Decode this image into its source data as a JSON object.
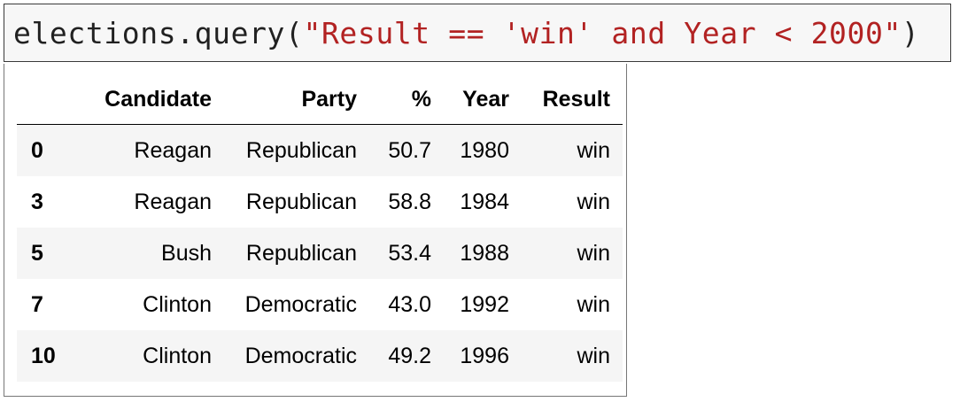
{
  "code_cell": {
    "prefix": "elections.query(",
    "string_literal": "\"Result == 'win' and Year < 2000\"",
    "suffix": ")"
  },
  "dataframe": {
    "columns": [
      "",
      "Candidate",
      "Party",
      "%",
      "Year",
      "Result"
    ],
    "rows": [
      {
        "index": "0",
        "Candidate": "Reagan",
        "Party": "Republican",
        "pct": "50.7",
        "Year": "1980",
        "Result": "win"
      },
      {
        "index": "3",
        "Candidate": "Reagan",
        "Party": "Republican",
        "pct": "58.8",
        "Year": "1984",
        "Result": "win"
      },
      {
        "index": "5",
        "Candidate": "Bush",
        "Party": "Republican",
        "pct": "53.4",
        "Year": "1988",
        "Result": "win"
      },
      {
        "index": "7",
        "Candidate": "Clinton",
        "Party": "Democratic",
        "pct": "43.0",
        "Year": "1992",
        "Result": "win"
      },
      {
        "index": "10",
        "Candidate": "Clinton",
        "Party": "Democratic",
        "pct": "49.2",
        "Year": "1996",
        "Result": "win"
      }
    ]
  },
  "colors": {
    "code_text": "#212121",
    "string_literal": "#b22222",
    "code_background": "#f7f7f7",
    "striped_row": "#f5f5f5"
  }
}
